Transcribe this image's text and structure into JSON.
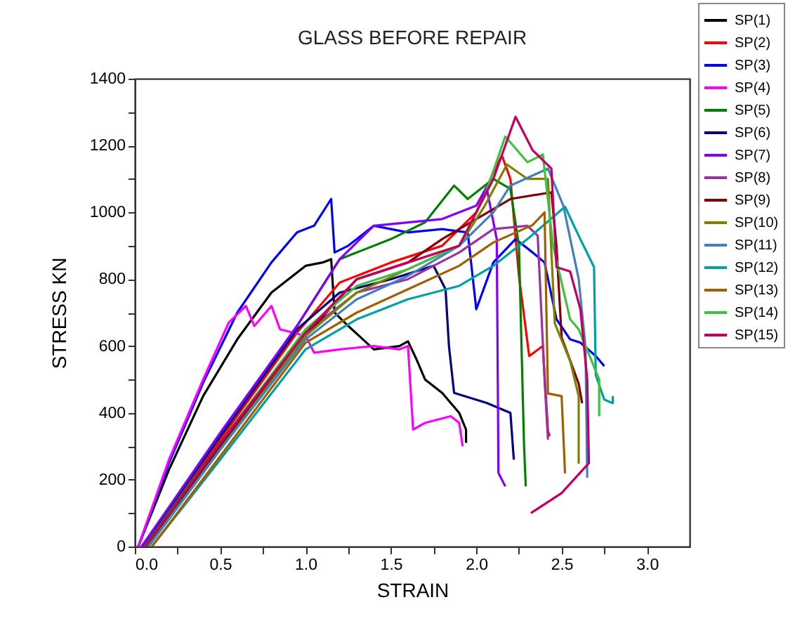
{
  "chart_data": {
    "type": "line",
    "title": "GLASS BEFORE REPAIR",
    "xlabel": "STRAIN",
    "ylabel": "STRESS  KN",
    "xlim": [
      0,
      3.25
    ],
    "ylim": [
      0,
      1400
    ],
    "xticks": [
      {
        "value": 0,
        "label": "0.0"
      },
      {
        "value": 0.25,
        "label": null
      },
      {
        "value": 0.5,
        "label": "0.5"
      },
      {
        "value": 0.75,
        "label": null
      },
      {
        "value": 1,
        "label": "1.0"
      },
      {
        "value": 1.25,
        "label": null
      },
      {
        "value": 1.5,
        "label": "1.5"
      },
      {
        "value": 1.75,
        "label": null
      },
      {
        "value": 2,
        "label": "2.0"
      },
      {
        "value": 2.25,
        "label": null
      },
      {
        "value": 2.5,
        "label": "2.5"
      },
      {
        "value": 2.75,
        "label": null
      },
      {
        "value": 3,
        "label": "3.0"
      }
    ],
    "yticks": [
      0,
      {
        "value": 100,
        "label": null
      },
      200,
      {
        "value": 300,
        "label": null
      },
      400,
      {
        "value": 500,
        "label": null
      },
      600,
      {
        "value": 700,
        "label": null
      },
      800,
      {
        "value": 900,
        "label": null
      },
      1000,
      {
        "value": 1100,
        "label": null
      },
      1200,
      {
        "value": 1300,
        "label": null
      },
      1400
    ],
    "grid": false,
    "legend": "top right",
    "line_style": "solid",
    "marker": "none",
    "series": [
      {
        "name": "SP(1)",
        "color": "#000000",
        "x": [
          0.02,
          0.2,
          0.4,
          0.6,
          0.8,
          1.0,
          1.1,
          1.15,
          1.17,
          1.25,
          1.4,
          1.55,
          1.6,
          1.65,
          1.7,
          1.8,
          1.9,
          1.94,
          1.94
        ],
        "values": [
          0,
          230,
          450,
          620,
          760,
          840,
          850,
          860,
          700,
          660,
          590,
          600,
          614,
          560,
          500,
          460,
          400,
          350,
          310
        ]
      },
      {
        "name": "SP(2)",
        "color": "#ff0000",
        "x": [
          0.05,
          0.5,
          0.95,
          1.2,
          1.5,
          1.8,
          2.0,
          2.1,
          2.15,
          2.2,
          2.25,
          2.31,
          2.39,
          2.42,
          2.43
        ],
        "values": [
          0,
          320,
          640,
          790,
          850,
          900,
          1000,
          1120,
          1170,
          1100,
          810,
          570,
          600,
          345,
          330
        ]
      },
      {
        "name": "SP(3)",
        "color": "#0000ff",
        "x": [
          0.02,
          0.2,
          0.4,
          0.6,
          0.8,
          0.95,
          1.05,
          1.15,
          1.17,
          1.25,
          1.4,
          1.6,
          1.8,
          1.95,
          2.0,
          2.1,
          2.23,
          2.33,
          2.4,
          2.47,
          2.55,
          2.61,
          2.7,
          2.75
        ],
        "values": [
          0,
          250,
          490,
          700,
          850,
          940,
          960,
          1040,
          880,
          900,
          960,
          940,
          950,
          940,
          710,
          850,
          920,
          880,
          850,
          680,
          620,
          610,
          570,
          540
        ]
      },
      {
        "name": "SP(4)",
        "color": "#ff00ff",
        "x": [
          0.02,
          0.2,
          0.4,
          0.55,
          0.65,
          0.7,
          0.8,
          0.85,
          1.0,
          1.05,
          1.2,
          1.4,
          1.55,
          1.6,
          1.63,
          1.7,
          1.85,
          1.9,
          1.92
        ],
        "values": [
          0,
          260,
          500,
          670,
          720,
          660,
          720,
          650,
          630,
          580,
          590,
          600,
          590,
          600,
          350,
          370,
          390,
          370,
          300
        ]
      },
      {
        "name": "SP(5)",
        "color": "#008000",
        "x": [
          0.05,
          0.5,
          0.95,
          1.2,
          1.5,
          1.7,
          1.87,
          1.95,
          2.1,
          2.2,
          2.25,
          2.28,
          2.29
        ],
        "values": [
          0,
          330,
          660,
          860,
          920,
          970,
          1080,
          1040,
          1100,
          1070,
          900,
          300,
          180
        ]
      },
      {
        "name": "SP(6)",
        "color": "#000080",
        "x": [
          0.04,
          0.5,
          0.95,
          1.2,
          1.5,
          1.75,
          1.82,
          1.84,
          1.87,
          2.06,
          2.2,
          2.22
        ],
        "values": [
          0,
          330,
          650,
          760,
          800,
          840,
          770,
          600,
          460,
          430,
          400,
          260
        ]
      },
      {
        "name": "SP(7)",
        "color": "#8000ff",
        "x": [
          0.04,
          0.5,
          0.95,
          1.2,
          1.4,
          1.6,
          1.8,
          2.0,
          2.06,
          2.12,
          2.13,
          2.17
        ],
        "values": [
          0,
          340,
          660,
          860,
          960,
          970,
          980,
          1020,
          1075,
          920,
          220,
          180
        ]
      },
      {
        "name": "SP(8)",
        "color": "#9b30a0",
        "x": [
          0.06,
          0.5,
          1.0,
          1.3,
          1.6,
          1.9,
          2.1,
          2.3,
          2.36,
          2.4,
          2.42
        ],
        "values": [
          0,
          310,
          640,
          760,
          800,
          880,
          950,
          960,
          930,
          500,
          320
        ]
      },
      {
        "name": "SP(9)",
        "color": "#800000",
        "x": [
          0.07,
          0.5,
          1.0,
          1.3,
          1.6,
          1.8,
          2.0,
          2.2,
          2.44,
          2.47,
          2.5,
          2.6,
          2.62
        ],
        "values": [
          0,
          300,
          630,
          800,
          850,
          920,
          980,
          1040,
          1060,
          900,
          626,
          487,
          429
        ]
      },
      {
        "name": "SP(10)",
        "color": "#808000",
        "x": [
          0.08,
          0.5,
          1.0,
          1.3,
          1.6,
          1.9,
          2.05,
          2.18,
          2.3,
          2.42,
          2.46,
          2.55,
          2.6,
          2.6
        ],
        "values": [
          0,
          290,
          630,
          760,
          830,
          900,
          1020,
          1143,
          1100,
          1100,
          668,
          555,
          450,
          248
        ]
      },
      {
        "name": "SP(11)",
        "color": "#4080c0",
        "x": [
          0.08,
          0.5,
          1.0,
          1.3,
          1.6,
          1.9,
          2.1,
          2.2,
          2.42,
          2.51,
          2.6,
          2.64,
          2.65
        ],
        "values": [
          0,
          290,
          620,
          740,
          810,
          900,
          1000,
          1080,
          1131,
          1020,
          800,
          597,
          206
        ]
      },
      {
        "name": "SP(12)",
        "color": "#00a0a0",
        "x": [
          0.1,
          0.5,
          1.0,
          1.3,
          1.6,
          1.9,
          2.1,
          2.3,
          2.52,
          2.6,
          2.69,
          2.7,
          2.75,
          2.8,
          2.8
        ],
        "values": [
          0,
          260,
          590,
          680,
          740,
          780,
          840,
          920,
          1017,
          930,
          836,
          513,
          440,
          429,
          450
        ]
      },
      {
        "name": "SP(13)",
        "color": "#a06000",
        "x": [
          0.1,
          0.5,
          1.0,
          1.3,
          1.6,
          1.9,
          2.1,
          2.33,
          2.4,
          2.42,
          2.5,
          2.52
        ],
        "values": [
          0,
          270,
          610,
          700,
          770,
          840,
          910,
          962,
          1000,
          458,
          450,
          219
        ]
      },
      {
        "name": "SP(14)",
        "color": "#40c040",
        "x": [
          0.06,
          0.5,
          1.0,
          1.3,
          1.6,
          1.9,
          2.05,
          2.17,
          2.3,
          2.39,
          2.45,
          2.55,
          2.6,
          2.72,
          2.72
        ],
        "values": [
          0,
          310,
          650,
          780,
          830,
          900,
          1050,
          1227,
          1150,
          1173,
          900,
          680,
          650,
          500,
          390
        ]
      },
      {
        "name": "SP(15)",
        "color": "#c00060",
        "x": [
          0.06,
          0.5,
          1.0,
          1.3,
          1.6,
          1.9,
          2.1,
          2.23,
          2.33,
          2.44,
          2.47,
          2.55,
          2.61,
          2.65,
          2.66,
          2.5,
          2.32
        ],
        "values": [
          0,
          310,
          640,
          800,
          850,
          900,
          1100,
          1286,
          1186,
          1131,
          836,
          823,
          710,
          500,
          250,
          160,
          100
        ]
      }
    ]
  }
}
